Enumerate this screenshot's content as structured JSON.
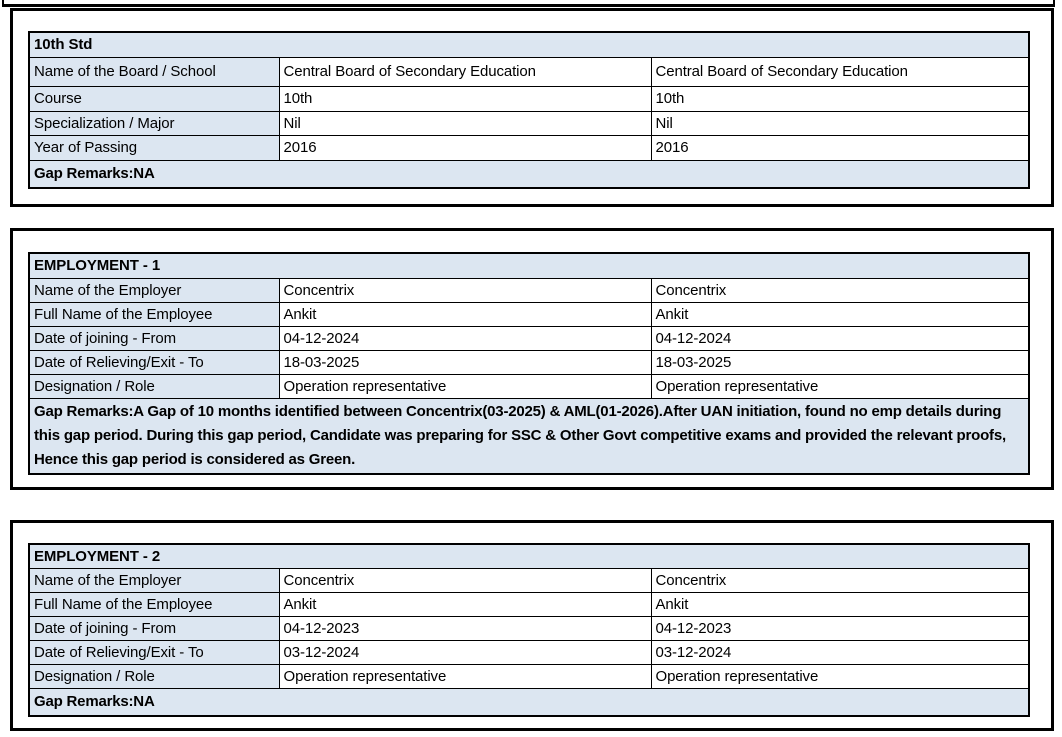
{
  "colors": {
    "cell_fill": "#dce6f1",
    "border": "#000000",
    "page_background": "#ffffff",
    "text": "#000000"
  },
  "sections": [
    {
      "title": "10th Std",
      "rows": [
        {
          "label": "Name of the Board / School",
          "value1": "Central Board of Secondary Education",
          "value2": "Central Board of Secondary Education"
        },
        {
          "label": "Course",
          "value1": "10th",
          "value2": "10th"
        },
        {
          "label": "Specialization / Major",
          "value1": "Nil",
          "value2": "Nil"
        },
        {
          "label": "Year of Passing",
          "value1": "2016",
          "value2": "2016"
        }
      ],
      "gap_remarks": "Gap Remarks:NA"
    },
    {
      "title": "EMPLOYMENT - 1",
      "rows": [
        {
          "label": "Name of the Employer",
          "value1": "Concentrix",
          "value2": "Concentrix"
        },
        {
          "label": "Full Name of the Employee",
          "value1": "Ankit",
          "value2": "Ankit"
        },
        {
          "label": "Date of joining - From",
          "value1": "04-12-2024",
          "value2": "04-12-2024"
        },
        {
          "label": "Date of Relieving/Exit - To",
          "value1": "18-03-2025",
          "value2": "18-03-2025"
        },
        {
          "label": "Designation / Role",
          "value1": "Operation representative",
          "value2": "Operation representative"
        }
      ],
      "gap_remarks": "Gap Remarks:A Gap of 10 months identified between Concentrix(03-2025) & AML(01-2026).After UAN initiation, found no emp details during this gap period. During this gap period, Candidate was preparing for SSC & Other Govt competitive exams and provided the relevant proofs, Hence this gap period is considered as Green."
    },
    {
      "title": "EMPLOYMENT - 2",
      "rows": [
        {
          "label": "Name of the Employer",
          "value1": "Concentrix",
          "value2": "Concentrix"
        },
        {
          "label": "Full Name of the Employee",
          "value1": "Ankit",
          "value2": "Ankit"
        },
        {
          "label": "Date of joining - From",
          "value1": "04-12-2023",
          "value2": "04-12-2023"
        },
        {
          "label": "Date of Relieving/Exit - To",
          "value1": "03-12-2024",
          "value2": "03-12-2024"
        },
        {
          "label": "Designation / Role",
          "value1": "Operation representative",
          "value2": "Operation representative"
        }
      ],
      "gap_remarks": "Gap Remarks:NA"
    }
  ]
}
